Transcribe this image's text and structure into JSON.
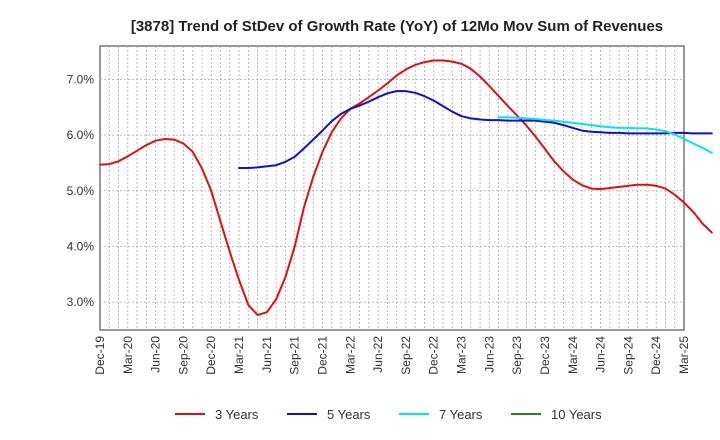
{
  "chart_data": {
    "type": "line",
    "title": "[3878]  Trend of StDev of Growth Rate (YoY) of 12Mo Mov Sum of Revenues",
    "xlabel": "",
    "ylabel": "",
    "x_ticks": [
      "Dec-19",
      "Mar-20",
      "Jun-20",
      "Sep-20",
      "Dec-20",
      "Mar-21",
      "Jun-21",
      "Sep-21",
      "Dec-21",
      "Mar-22",
      "Jun-22",
      "Sep-22",
      "Dec-22",
      "Mar-23",
      "Jun-23",
      "Sep-23",
      "Dec-23",
      "Mar-24",
      "Jun-24",
      "Sep-24",
      "Dec-24",
      "Mar-25"
    ],
    "y_ticks": [
      3.0,
      4.0,
      5.0,
      6.0,
      7.0
    ],
    "y_tick_labels": [
      "3.0%",
      "4.0%",
      "5.0%",
      "6.0%",
      "7.0%"
    ],
    "ylim": [
      2.5,
      7.6
    ],
    "grid": true,
    "legend_position": "bottom",
    "series": [
      {
        "name": "3 Years",
        "color": "#dd1111",
        "start_index": 0,
        "values": [
          5.47,
          5.48,
          5.53,
          5.62,
          5.72,
          5.82,
          5.9,
          5.93,
          5.92,
          5.85,
          5.7,
          5.4,
          5.0,
          4.45,
          3.9,
          3.4,
          2.95,
          2.77,
          2.82,
          3.05,
          3.45,
          4.0,
          4.7,
          5.25,
          5.7,
          6.05,
          6.3,
          6.47,
          6.57,
          6.68,
          6.8,
          6.93,
          7.07,
          7.18,
          7.26,
          7.31,
          7.34,
          7.34,
          7.32,
          7.28,
          7.19,
          7.05,
          6.88,
          6.7,
          6.52,
          6.35,
          6.17,
          5.97,
          5.75,
          5.53,
          5.35,
          5.2,
          5.1,
          5.04,
          5.03,
          5.05,
          5.07,
          5.09,
          5.11,
          5.11,
          5.09,
          5.04,
          4.93,
          4.79,
          4.62,
          4.41,
          4.25
        ]
      },
      {
        "name": "5 Years",
        "color": "#1111cc",
        "start_index": 15,
        "values": [
          5.41,
          5.41,
          5.42,
          5.44,
          5.46,
          5.52,
          5.61,
          5.76,
          5.92,
          6.08,
          6.25,
          6.38,
          6.47,
          6.53,
          6.6,
          6.68,
          6.75,
          6.79,
          6.79,
          6.76,
          6.7,
          6.62,
          6.52,
          6.42,
          6.34,
          6.3,
          6.28,
          6.27,
          6.27,
          6.26,
          6.26,
          6.26,
          6.26,
          6.24,
          6.22,
          6.18,
          6.13,
          6.08,
          6.06,
          6.05,
          6.04,
          6.04,
          6.03,
          6.03,
          6.03,
          6.03,
          6.03,
          6.04,
          6.04,
          6.03,
          6.03,
          6.03
        ]
      },
      {
        "name": "7 Years",
        "color": "#00e5ee",
        "start_index": 43,
        "values": [
          6.32,
          6.32,
          6.31,
          6.3,
          6.29,
          6.27,
          6.26,
          6.24,
          6.22,
          6.2,
          6.18,
          6.16,
          6.14,
          6.13,
          6.13,
          6.12,
          6.12,
          6.1,
          6.07,
          6.01,
          5.93,
          5.85,
          5.77,
          5.68
        ]
      },
      {
        "name": "10 Years",
        "color": "#228822",
        "start_index": 0,
        "values": []
      }
    ]
  }
}
